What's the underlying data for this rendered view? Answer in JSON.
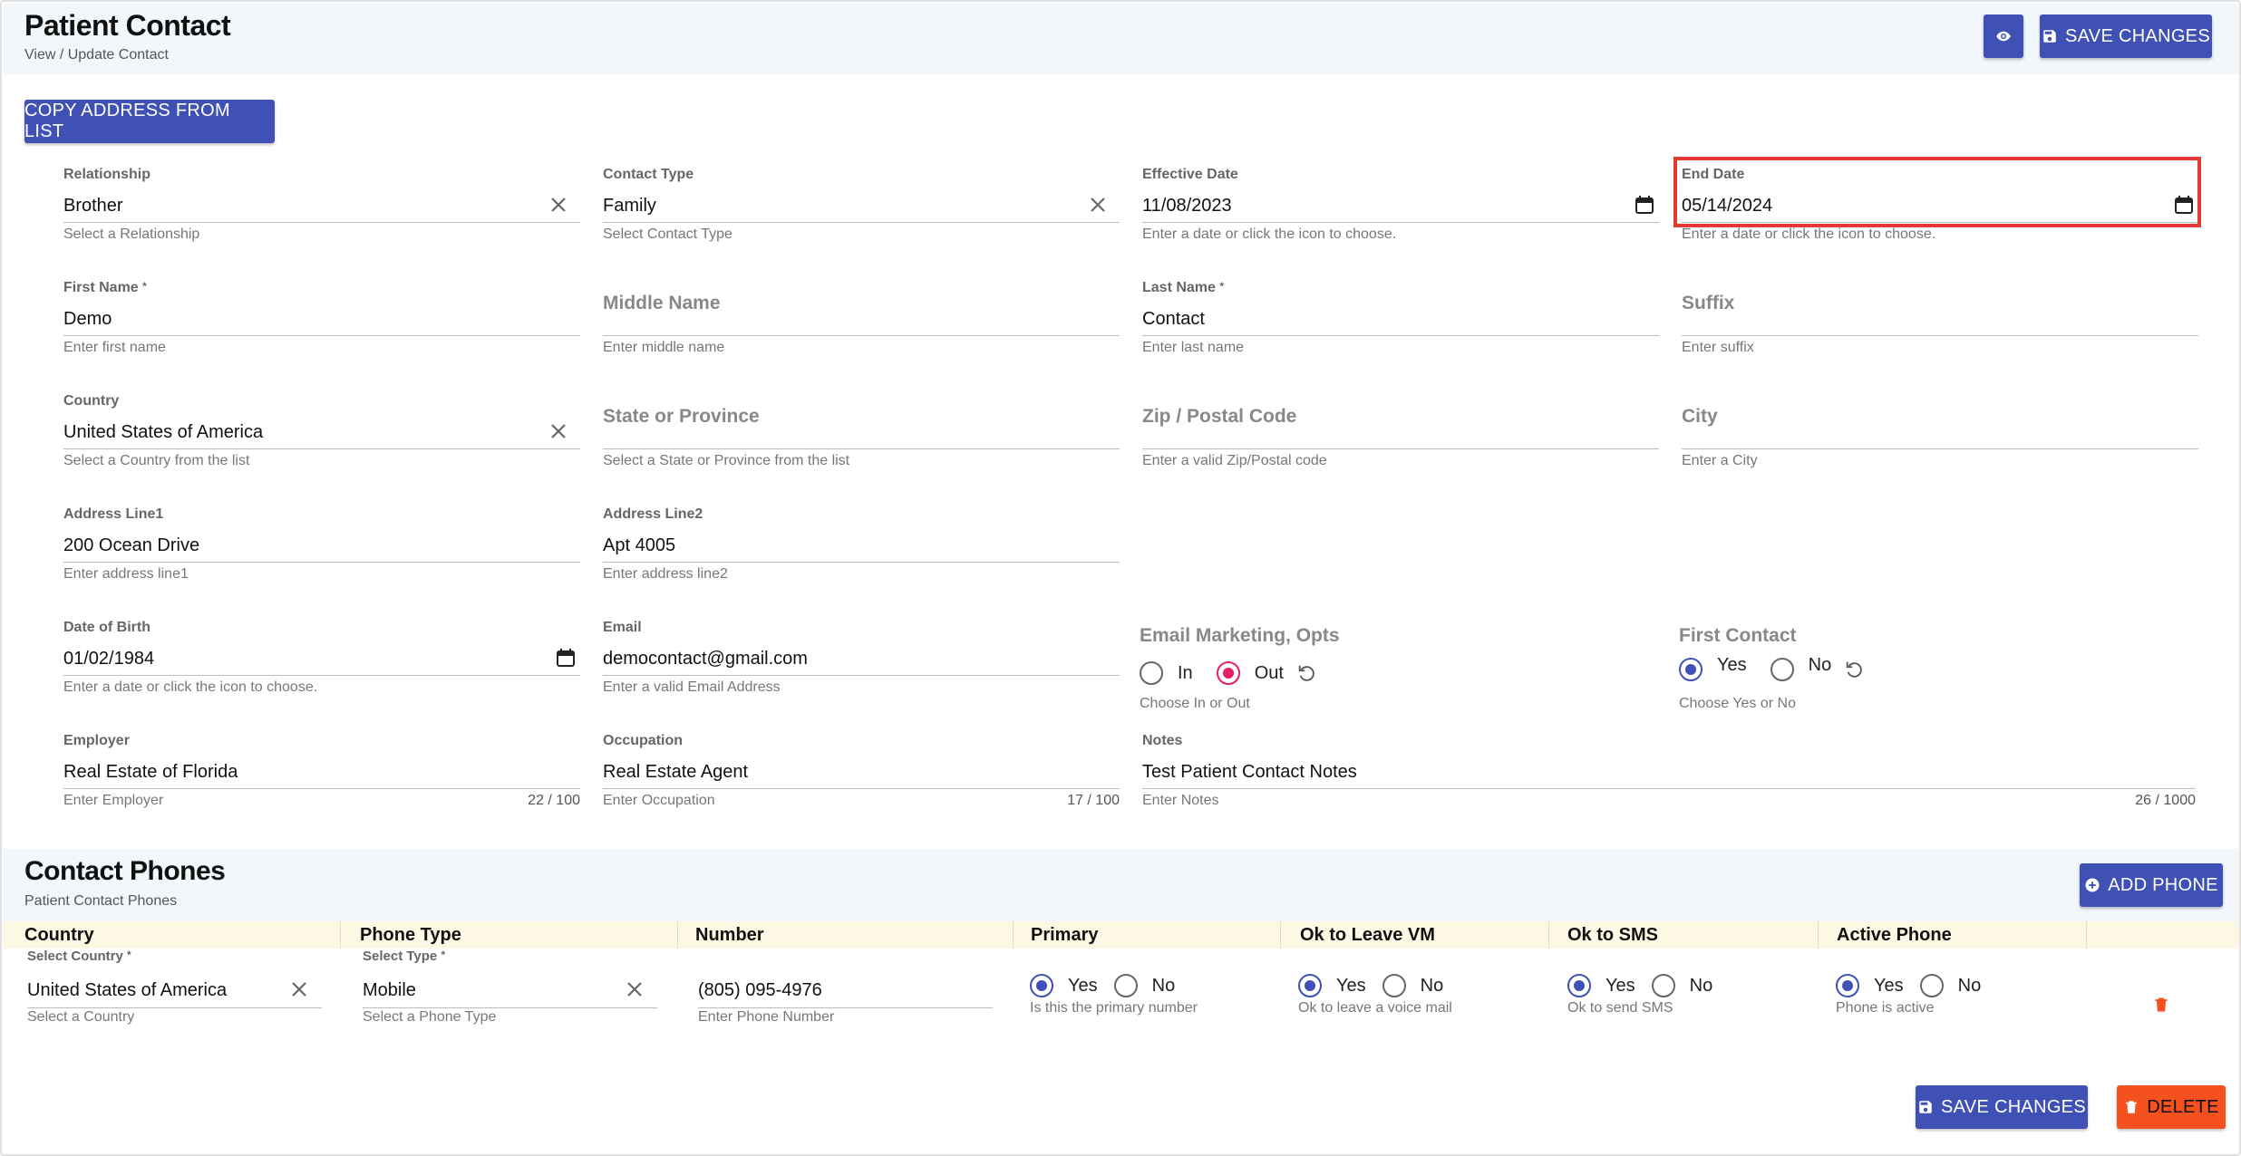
{
  "header": {
    "title": "Patient Contact",
    "subtitle": "View / Update Contact",
    "save_label": "SAVE CHANGES"
  },
  "copy_address_label": "COPY ADDRESS FROM LIST",
  "fields": {
    "relationship": {
      "label": "Relationship",
      "value": "Brother",
      "hint": "Select a Relationship"
    },
    "contact_type": {
      "label": "Contact Type",
      "value": "Family",
      "hint": "Select Contact Type"
    },
    "effective_date": {
      "label": "Effective Date",
      "value": "11/08/2023",
      "hint": "Enter a date or click the icon to choose."
    },
    "end_date": {
      "label": "End Date",
      "value": "05/14/2024",
      "hint": "Enter a date or click the icon to choose."
    },
    "first_name": {
      "label": "First Name",
      "required": "*",
      "value": "Demo",
      "hint": "Enter first name"
    },
    "middle_name": {
      "label": "Middle Name",
      "hint": "Enter middle name"
    },
    "last_name": {
      "label": "Last Name",
      "required": "*",
      "value": "Contact",
      "hint": "Enter last name"
    },
    "suffix": {
      "label": "Suffix",
      "hint": "Enter suffix"
    },
    "country": {
      "label": "Country",
      "value": "United States of America",
      "hint": "Select a Country from the list"
    },
    "state": {
      "label": "State or Province",
      "hint": "Select a State or Province from the list"
    },
    "zip": {
      "label": "Zip / Postal Code",
      "hint": "Enter a valid Zip/Postal code"
    },
    "city": {
      "label": "City",
      "hint": "Enter a City"
    },
    "address1": {
      "label": "Address Line1",
      "value": "200 Ocean Drive",
      "hint": "Enter address line1"
    },
    "address2": {
      "label": "Address Line2",
      "value": "Apt 4005",
      "hint": "Enter address line2"
    },
    "dob": {
      "label": "Date of Birth",
      "value": "01/02/1984",
      "hint": "Enter a date or click the icon to choose."
    },
    "email": {
      "label": "Email",
      "value": "democontact@gmail.com",
      "hint": "Enter a valid Email Address"
    },
    "email_marketing": {
      "label": "Email Marketing, Opts",
      "opt_in": "In",
      "opt_out": "Out",
      "selected": "Out",
      "hint": "Choose In or Out"
    },
    "first_contact": {
      "label": "First Contact",
      "yes": "Yes",
      "no": "No",
      "selected": "Yes",
      "hint": "Choose Yes or No"
    },
    "employer": {
      "label": "Employer",
      "value": "Real Estate of Florida",
      "hint": "Enter Employer",
      "count": "22 / 100"
    },
    "occupation": {
      "label": "Occupation",
      "value": "Real Estate Agent",
      "hint": "Enter Occupation",
      "count": "17 / 100"
    },
    "notes": {
      "label": "Notes",
      "value": "Test Patient Contact Notes",
      "hint": "Enter Notes",
      "count": "26 / 1000"
    }
  },
  "phones": {
    "title": "Contact Phones",
    "subtitle": "Patient Contact Phones",
    "add_label": "ADD PHONE",
    "columns": [
      "Country",
      "Phone Type",
      "Number",
      "Primary",
      "Ok to Leave VM",
      "Ok to SMS",
      "Active Phone"
    ],
    "row": {
      "country_label": "Select Country",
      "country_value": "United States of America",
      "country_hint": "Select a Country",
      "type_label": "Select Type",
      "type_value": "Mobile",
      "type_hint": "Select a Phone Type",
      "number_value": "(805) 095-4976",
      "number_hint": "Enter Phone Number",
      "yes": "Yes",
      "no": "No",
      "primary_hint": "Is this the primary number",
      "vm_hint": "Ok to leave a voice mail",
      "sms_hint": "Ok to send SMS",
      "active_hint": "Phone is active"
    },
    "save_label": "SAVE CHANGES",
    "delete_label": "DELETE"
  },
  "colors": {
    "primary": "#3f51b5",
    "danger": "#f4511e",
    "highlight": "#e53935",
    "radio_pink": "#e91e63"
  }
}
